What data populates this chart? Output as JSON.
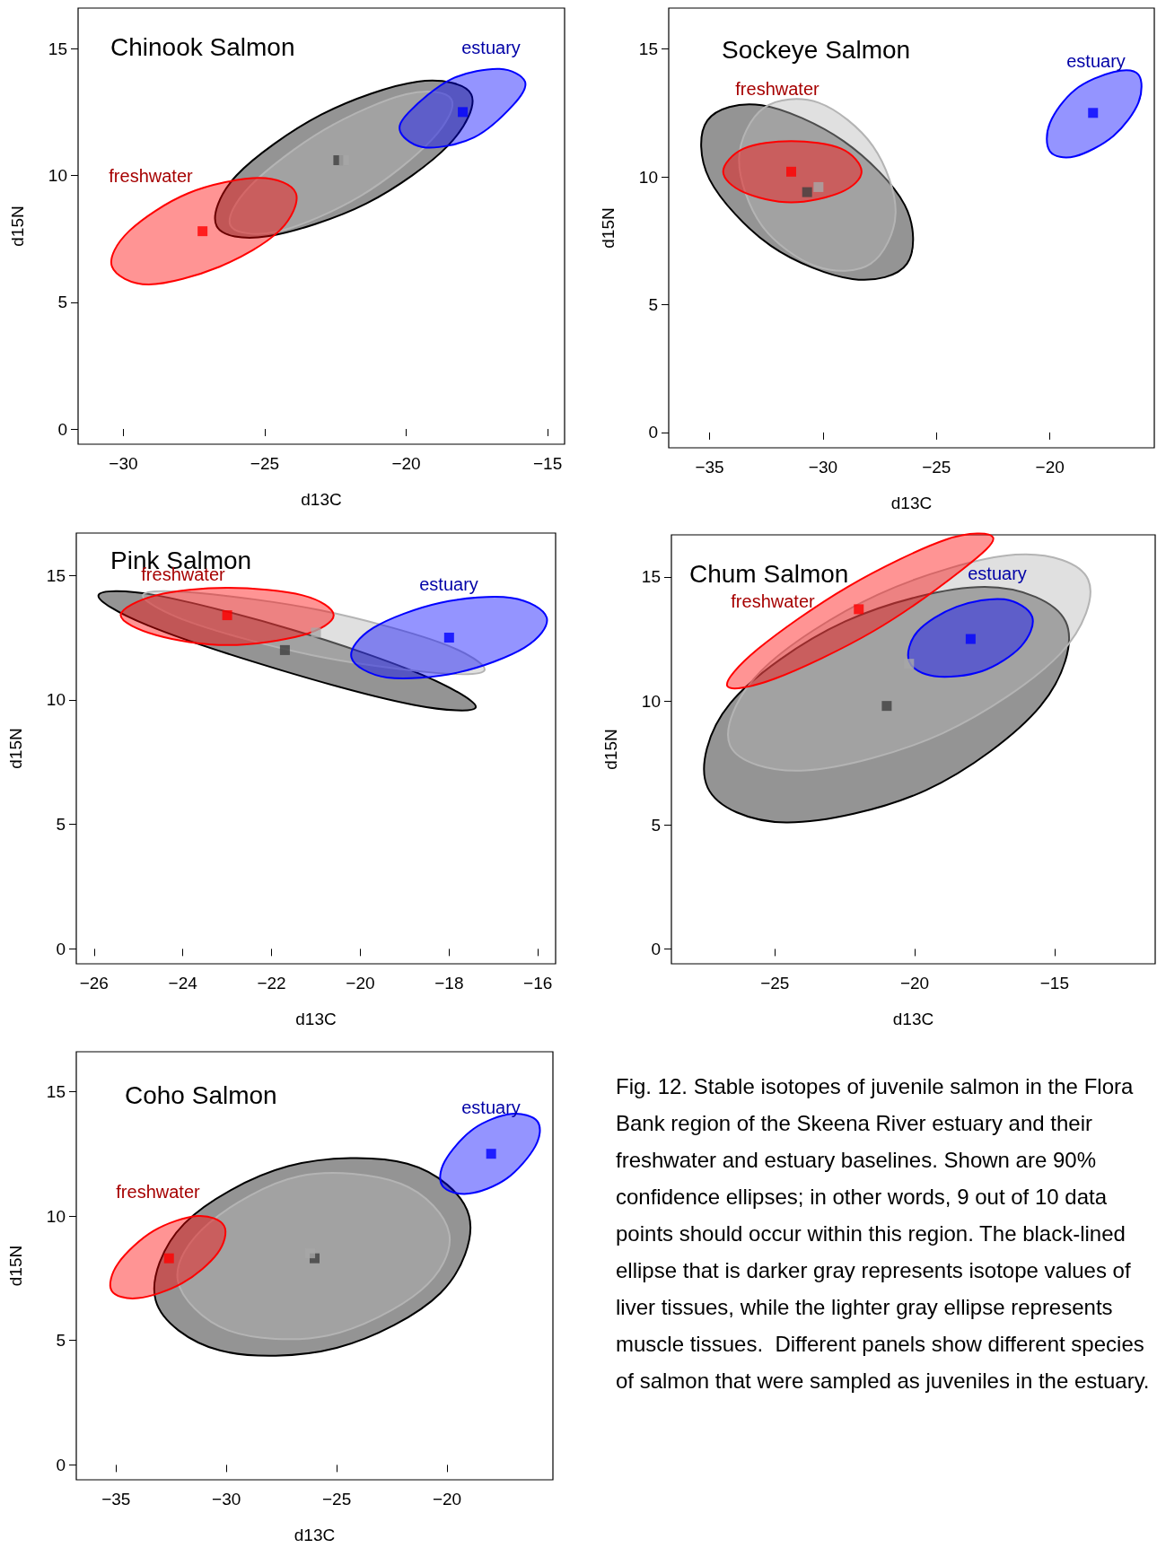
{
  "chart_data": [
    {
      "type": "area",
      "title": "Chinook Salmon",
      "xlabel": "d13C",
      "ylabel": "d15N",
      "xlim": [
        -31.6,
        -14.4
      ],
      "ylim": [
        -0.6,
        16.6
      ],
      "xticks": [
        {
          "value": -30,
          "label": "−30"
        },
        {
          "value": -25,
          "label": "−25"
        },
        {
          "value": -20,
          "label": "−20"
        },
        {
          "value": -15,
          "label": "−15"
        }
      ],
      "yticks": [
        0,
        5,
        10,
        15
      ],
      "annotations": [
        "freshwater",
        "estuary"
      ],
      "series": [
        {
          "type": "area",
          "color": "#000000",
          "x": [
            -17.7,
            -19.6,
            -23.0,
            -26.0,
            -26.7,
            -24.9,
            -21.4,
            -18.5
          ],
          "values": [
            13.2,
            13.7,
            12.4,
            10.0,
            8.0,
            7.6,
            8.9,
            11.2
          ]
        },
        {
          "type": "area",
          "color": "#b4b4b4",
          "x": [
            -18.4,
            -20.0,
            -22.9,
            -25.5,
            -26.2,
            -24.5,
            -21.6,
            -19.1
          ],
          "values": [
            13.0,
            13.2,
            11.8,
            9.6,
            8.0,
            7.8,
            9.2,
            11.4
          ]
        },
        {
          "type": "area",
          "color": "#ff0000",
          "x": [
            -23.9,
            -25.2,
            -27.7,
            -29.8,
            -30.4,
            -29.1,
            -26.6,
            -24.5
          ],
          "values": [
            9.3,
            9.9,
            9.3,
            7.8,
            6.4,
            5.7,
            6.4,
            7.8
          ]
        },
        {
          "type": "area",
          "color": "#0000ff",
          "x": [
            -15.8,
            -16.7,
            -18.4,
            -19.9,
            -20.2,
            -19.3,
            -17.6,
            -16.2
          ],
          "values": [
            13.7,
            14.2,
            13.8,
            12.5,
            11.7,
            11.1,
            11.5,
            12.8
          ]
        },
        {
          "type": "scatter",
          "marker": "square",
          "color": "#404040",
          "x": [
            -22.4
          ],
          "values": [
            10.6
          ]
        },
        {
          "type": "scatter",
          "marker": "square",
          "color": "#a8a8a8",
          "x": [
            -22.2
          ],
          "values": [
            10.6
          ]
        },
        {
          "type": "scatter",
          "marker": "square",
          "color": "#ff0000",
          "x": [
            -27.2
          ],
          "values": [
            7.8
          ]
        },
        {
          "type": "scatter",
          "marker": "square",
          "color": "#0000ff",
          "x": [
            -18.0
          ],
          "values": [
            12.5
          ]
        }
      ]
    },
    {
      "type": "area",
      "title": "Sockeye Salmon",
      "xlabel": "d13C",
      "ylabel": "d15N",
      "xlim": [
        -36.8,
        -15.4
      ],
      "ylim": [
        -0.6,
        16.6
      ],
      "xticks": [
        {
          "value": -35,
          "label": "−35"
        },
        {
          "value": -30,
          "label": "−30"
        },
        {
          "value": -25,
          "label": "−25"
        },
        {
          "value": -20,
          "label": "−20"
        }
      ],
      "yticks": [
        0,
        5,
        10,
        15
      ],
      "annotations": [
        "freshwater",
        "estuary"
      ],
      "series": [
        {
          "type": "area",
          "color": "#000000",
          "x": [
            -26.3,
            -26.4,
            -29.1,
            -32.7,
            -35.1,
            -35.0,
            -32.3,
            -28.7
          ],
          "values": [
            6.6,
            8.9,
            11.4,
            12.8,
            12.2,
            9.9,
            7.3,
            6.0
          ]
        },
        {
          "type": "area",
          "color": "#b4b4b4",
          "x": [
            -27.9,
            -26.8,
            -27.8,
            -30.2,
            -32.6,
            -33.7,
            -32.7,
            -30.3
          ],
          "values": [
            6.6,
            8.6,
            11.2,
            12.9,
            12.7,
            10.7,
            8.1,
            6.5
          ]
        },
        {
          "type": "area",
          "color": "#ff0000",
          "x": [
            -28.3,
            -29.2,
            -31.4,
            -33.5,
            -34.4,
            -33.5,
            -31.4,
            -29.2
          ],
          "values": [
            10.2,
            11.1,
            11.4,
            11.1,
            10.2,
            9.4,
            9.0,
            9.4
          ]
        },
        {
          "type": "area",
          "color": "#0000ff",
          "x": [
            -16.1,
            -17.2,
            -18.9,
            -20.0,
            -20.0,
            -18.9,
            -17.2,
            -16.1
          ],
          "values": [
            14.0,
            14.1,
            13.4,
            12.1,
            11.0,
            10.8,
            11.6,
            12.9
          ]
        },
        {
          "type": "scatter",
          "marker": "square",
          "color": "#404040",
          "x": [
            -30.7
          ],
          "values": [
            9.4
          ]
        },
        {
          "type": "scatter",
          "marker": "square",
          "color": "#a8a8a8",
          "x": [
            -30.2
          ],
          "values": [
            9.6
          ]
        },
        {
          "type": "scatter",
          "marker": "square",
          "color": "#ff0000",
          "x": [
            -31.4
          ],
          "values": [
            10.2
          ]
        },
        {
          "type": "scatter",
          "marker": "square",
          "color": "#0000ff",
          "x": [
            -18.1
          ],
          "values": [
            12.5
          ]
        }
      ]
    },
    {
      "type": "area",
      "title": "Pink Salmon",
      "xlabel": "d13C",
      "ylabel": "d15N",
      "xlim": [
        -26.4,
        -15.6
      ],
      "ylim": [
        -0.6,
        16.7
      ],
      "xticks": [
        {
          "value": -26,
          "label": "−26"
        },
        {
          "value": -24,
          "label": "−24"
        },
        {
          "value": -22,
          "label": "−22"
        },
        {
          "value": -20,
          "label": "−20"
        },
        {
          "value": -18,
          "label": "−18"
        },
        {
          "value": -16,
          "label": "−16"
        }
      ],
      "yticks": [
        0,
        5,
        10,
        15
      ],
      "annotations": [
        "freshwater",
        "estuary"
      ],
      "series": [
        {
          "type": "area",
          "color": "#000000",
          "x": [
            -17.4,
            -18.6,
            -21.5,
            -24.6,
            -25.9,
            -24.8,
            -21.8,
            -18.8
          ],
          "values": [
            9.7,
            11.0,
            12.8,
            14.2,
            14.2,
            13.0,
            11.2,
            9.8
          ]
        },
        {
          "type": "area",
          "color": "#b4b4b4",
          "x": [
            -17.2,
            -18.2,
            -20.9,
            -23.7,
            -24.9,
            -23.8,
            -21.1,
            -18.4
          ],
          "values": [
            11.2,
            12.3,
            13.6,
            14.3,
            14.2,
            13.1,
            11.8,
            11.1
          ]
        },
        {
          "type": "area",
          "color": "#ff0000",
          "x": [
            -20.6,
            -21.3,
            -23.0,
            -24.6,
            -25.4,
            -24.6,
            -23.0,
            -21.3
          ],
          "values": [
            13.4,
            14.2,
            14.5,
            14.2,
            13.4,
            12.6,
            12.2,
            12.6
          ]
        },
        {
          "type": "area",
          "color": "#0000ff",
          "x": [
            -15.8,
            -16.6,
            -18.2,
            -19.7,
            -20.2,
            -19.4,
            -17.8,
            -16.3
          ],
          "values": [
            13.3,
            14.1,
            13.9,
            12.9,
            11.7,
            10.9,
            11.1,
            12.1
          ]
        },
        {
          "type": "scatter",
          "marker": "square",
          "color": "#404040",
          "x": [
            -21.7
          ],
          "values": [
            12.0
          ]
        },
        {
          "type": "scatter",
          "marker": "square",
          "color": "#a8a8a8",
          "x": [
            -21.0
          ],
          "values": [
            12.7
          ]
        },
        {
          "type": "scatter",
          "marker": "square",
          "color": "#ff0000",
          "x": [
            -23.0
          ],
          "values": [
            13.4
          ]
        },
        {
          "type": "scatter",
          "marker": "square",
          "color": "#0000ff",
          "x": [
            -18.0
          ],
          "values": [
            12.5
          ]
        }
      ]
    },
    {
      "type": "area",
      "title": "Chum Salmon",
      "xlabel": "d13C",
      "ylabel": "d15N",
      "xlim": [
        -28.7,
        -11.4
      ],
      "ylim": [
        -0.6,
        16.7
      ],
      "xticks": [
        {
          "value": -25,
          "label": "−25"
        },
        {
          "value": -20,
          "label": "−20"
        },
        {
          "value": -15,
          "label": "−15"
        }
      ],
      "yticks": [
        0,
        5,
        10,
        15
      ],
      "annotations": [
        "freshwater",
        "estuary"
      ],
      "series": [
        {
          "type": "area",
          "color": "#000000",
          "x": [
            -14.6,
            -17.5,
            -22.5,
            -26.6,
            -27.4,
            -24.6,
            -19.6,
            -15.5
          ],
          "values": [
            13.2,
            14.6,
            13.2,
            9.9,
            6.5,
            5.1,
            6.4,
            9.8
          ]
        },
        {
          "type": "area",
          "color": "#b4b4b4",
          "x": [
            -13.8,
            -16.4,
            -21.3,
            -25.5,
            -26.6,
            -23.9,
            -19.0,
            -14.8
          ],
          "values": [
            14.9,
            15.9,
            14.3,
            11.2,
            8.2,
            7.2,
            8.7,
            11.9
          ]
        },
        {
          "type": "area",
          "color": "#ff0000",
          "x": [
            -17.2,
            -18.9,
            -22.4,
            -25.6,
            -26.7,
            -25.0,
            -21.5,
            -18.3
          ],
          "values": [
            16.6,
            16.5,
            14.6,
            12.1,
            10.6,
            10.9,
            12.8,
            15.3
          ]
        },
        {
          "type": "area",
          "color": "#0000ff",
          "x": [
            -15.8,
            -16.8,
            -18.5,
            -19.9,
            -20.2,
            -19.3,
            -17.6,
            -16.2
          ],
          "values": [
            13.4,
            14.1,
            13.8,
            12.8,
            11.6,
            11.0,
            11.2,
            12.2
          ]
        },
        {
          "type": "scatter",
          "marker": "square",
          "color": "#404040",
          "x": [
            -21.0
          ],
          "values": [
            9.8
          ]
        },
        {
          "type": "scatter",
          "marker": "square",
          "color": "#a8a8a8",
          "x": [
            -20.2
          ],
          "values": [
            11.5
          ]
        },
        {
          "type": "scatter",
          "marker": "square",
          "color": "#ff0000",
          "x": [
            -22.0
          ],
          "values": [
            13.7
          ]
        },
        {
          "type": "scatter",
          "marker": "square",
          "color": "#0000ff",
          "x": [
            -18.0
          ],
          "values": [
            12.5
          ]
        }
      ]
    },
    {
      "type": "area",
      "title": "Coho Salmon",
      "xlabel": "d13C",
      "ylabel": "d15N",
      "xlim": [
        -36.8,
        -15.2
      ],
      "ylim": [
        -0.6,
        16.6
      ],
      "xticks": [
        {
          "value": -35,
          "label": "−35"
        },
        {
          "value": -30,
          "label": "−30"
        },
        {
          "value": -25,
          "label": "−25"
        },
        {
          "value": -20,
          "label": "−20"
        }
      ],
      "yticks": [
        0,
        5,
        10,
        15
      ],
      "annotations": [
        "freshwater",
        "estuary"
      ],
      "series": [
        {
          "type": "area",
          "color": "#000000",
          "x": [
            -19.0,
            -21.8,
            -27.2,
            -31.9,
            -33.2,
            -30.3,
            -25.0,
            -20.3
          ],
          "values": [
            10.0,
            12.1,
            12.0,
            9.7,
            6.6,
            4.6,
            4.7,
            6.9
          ]
        },
        {
          "type": "area",
          "color": "#b4b4b4",
          "x": [
            -19.9,
            -22.1,
            -26.7,
            -30.8,
            -32.2,
            -29.9,
            -25.4,
            -21.2
          ],
          "values": [
            9.3,
            11.3,
            11.6,
            9.7,
            7.4,
            5.4,
            5.2,
            7.0
          ]
        },
        {
          "type": "area",
          "color": "#ff0000",
          "x": [
            -30.1,
            -31.3,
            -33.3,
            -34.9,
            -35.2,
            -34.0,
            -32.0,
            -30.4
          ],
          "values": [
            9.6,
            10.0,
            9.4,
            8.1,
            7.0,
            6.7,
            7.3,
            8.5
          ]
        },
        {
          "type": "area",
          "color": "#0000ff",
          "x": [
            -15.9,
            -17.1,
            -18.8,
            -20.1,
            -20.2,
            -19.0,
            -17.3,
            -16.0
          ],
          "values": [
            13.8,
            14.1,
            13.5,
            12.2,
            11.2,
            10.9,
            11.5,
            12.8
          ]
        },
        {
          "type": "scatter",
          "marker": "square",
          "color": "#404040",
          "x": [
            -26.0
          ],
          "values": [
            8.3
          ]
        },
        {
          "type": "scatter",
          "marker": "square",
          "color": "#a8a8a8",
          "x": [
            -26.2
          ],
          "values": [
            8.5
          ]
        },
        {
          "type": "scatter",
          "marker": "square",
          "color": "#ff0000",
          "x": [
            -32.6
          ],
          "values": [
            8.3
          ]
        },
        {
          "type": "scatter",
          "marker": "square",
          "color": "#0000ff",
          "x": [
            -18.0
          ],
          "values": [
            12.5
          ]
        }
      ]
    },
    {
      "type": "other",
      "annotations": [
        "Fig. 12. Stable isotopes of juvenile salmon in the Flora Bank region of the Skeena River estuary and their freshwater and estuary baselines. Shown are 90% confidence ellipses; in other words, 9 out of 10 data points should occur within this region. The black-lined ellipse that is darker gray represents isotope values of liver tissues, while the lighter gray ellipse represents muscle tissues.  Different panels show different species of salmon that were sampled as juveniles in the estuary."
      ]
    }
  ]
}
